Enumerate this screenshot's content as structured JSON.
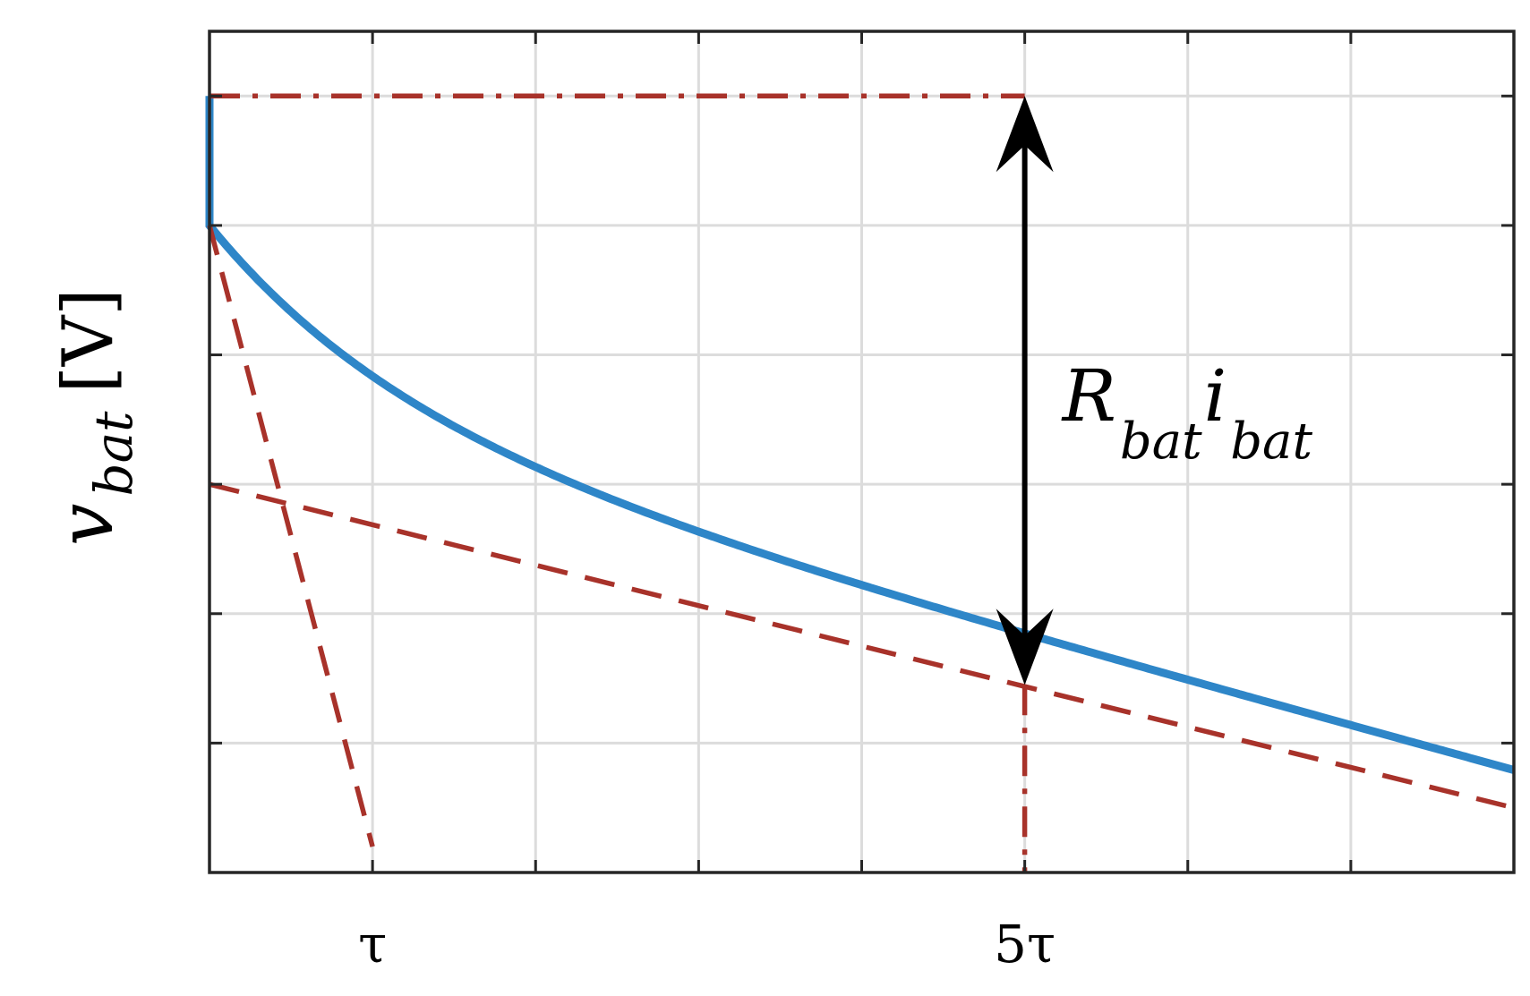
{
  "chart_data": {
    "type": "line",
    "xlabel": "",
    "ylabel": {
      "symbol": "v",
      "subscript": "bat",
      "unit": "[V]"
    },
    "xlim": [
      0,
      8
    ],
    "ylim": [
      0,
      6.5
    ],
    "grid": true,
    "x_tick_values": [
      0,
      1,
      2,
      3,
      4,
      5,
      6,
      7,
      8
    ],
    "y_tick_values": [
      0,
      1,
      2,
      3,
      4,
      5,
      6,
      6.5
    ],
    "x_tick_labels": [
      {
        "x": 1,
        "label": "τ"
      },
      {
        "x": 5,
        "label": "5τ"
      }
    ],
    "series": [
      {
        "role": "battery voltage",
        "color": "#2e86c8",
        "style": "solid",
        "shape": "instant drop then exponential relaxation plus linear decline",
        "params": {
          "v0": 6.0,
          "ohmic_drop": 1.0,
          "relax_amplitude": 1.45,
          "tau": 1.2,
          "slope": 0.345
        },
        "x_range": [
          0,
          8
        ]
      },
      {
        "role": "initial tangent",
        "color": "#a8322a",
        "style": "dashed",
        "points": [
          [
            0,
            5.0
          ],
          [
            1,
            0.2
          ]
        ]
      },
      {
        "role": "asymptote",
        "color": "#a8322a",
        "style": "dashed",
        "points": [
          [
            0,
            3.0
          ],
          [
            8,
            0.5
          ]
        ]
      },
      {
        "role": "initial voltage level",
        "color": "#a8322a",
        "style": "dashdot",
        "points": [
          [
            0,
            6.0
          ],
          [
            5,
            6.0
          ]
        ]
      },
      {
        "role": "5τ marker",
        "color": "#a8322a",
        "style": "dashdot",
        "points": [
          [
            5,
            1.45
          ],
          [
            5,
            0
          ]
        ]
      }
    ],
    "annotations": [
      {
        "type": "double-arrow",
        "x": 5,
        "y_from": 6.0,
        "y_to": 1.45,
        "color": "#000000",
        "label": {
          "main1": "R",
          "sub1": "bat",
          "main2": "i",
          "sub2": "bat"
        }
      }
    ]
  }
}
